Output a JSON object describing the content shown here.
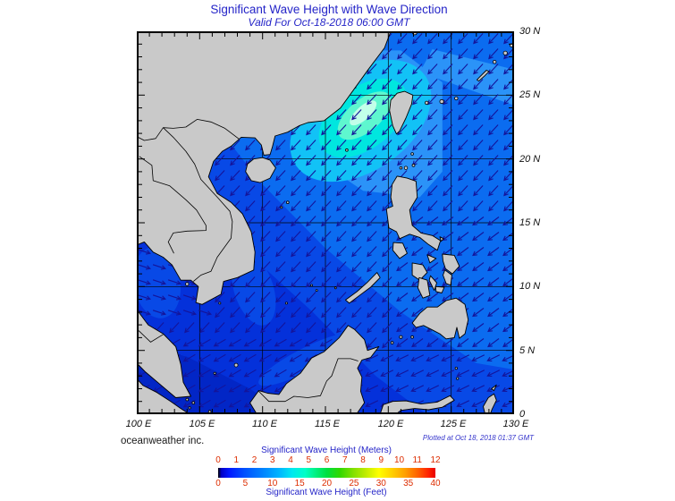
{
  "header": {
    "title": "Significant Wave Height with Wave Direction",
    "subtitle": "Valid For Oct-18-2018 06:00 GMT"
  },
  "footer": {
    "credit": "oceanweather inc.",
    "plotted": "Plotted at Oct 18, 2018 01:37 GMT"
  },
  "axes": {
    "lon_labels": [
      "100 E",
      "105 E",
      "110 E",
      "115 E",
      "120 E",
      "125 E",
      "130 E"
    ],
    "lat_labels": [
      "30 N",
      "25 N",
      "20 N",
      "15 N",
      "10 N",
      "5 N",
      "0"
    ]
  },
  "colorbar": {
    "meters_title": "Significant Wave Height (Meters)",
    "feet_title": "Significant Wave Height (Feet)",
    "meters_ticks": [
      "0",
      "1",
      "2",
      "3",
      "4",
      "5",
      "6",
      "7",
      "8",
      "9",
      "10",
      "11",
      "12"
    ],
    "feet_ticks": [
      "0",
      "5",
      "10",
      "15",
      "20",
      "25",
      "30",
      "35",
      "40"
    ],
    "tick_color": "#dd2d00",
    "title_color": "#2525c8"
  },
  "map": {
    "land_color": "#c9c9c9",
    "coast_color": "#000000",
    "grid_color": "#000000",
    "frame_color": "#000000",
    "arrow_color": "#14149a",
    "sea": {
      "base": "#0431da",
      "deep": "#0226c6",
      "band_1_5": "#0849e6",
      "band_2": "#0b6cf0",
      "band_2_5": "#2b93f8",
      "band_3": "#12c2f6",
      "band_3_5": "#00e6df",
      "band_4": "#5ef7cf",
      "band_4_5": "#c2ffe9"
    }
  },
  "chart_data": {
    "type": "heatmap",
    "title": "Significant Wave Height with Wave Direction",
    "valid_time": "Oct-18-2018 06:00 GMT",
    "plotted_time": "Oct 18, 2018 01:37 GMT",
    "region": "South China Sea / Philippine Sea",
    "lon_range_deg_e": [
      100,
      130
    ],
    "lat_range_deg_n": [
      0,
      30
    ],
    "grid_interval_deg": 5,
    "legend_meters": [
      0,
      1,
      2,
      3,
      4,
      5,
      6,
      7,
      8,
      9,
      10,
      11,
      12
    ],
    "legend_feet": [
      0,
      5,
      10,
      15,
      20,
      25,
      30,
      35,
      40
    ],
    "field_summary": "Wave heights about 1-2 m in the southern South China Sea and Gulf of Thailand, 2-3 m in the central basin and Philippine Sea, peaking near 4-5 m in the Taiwan Strait; wave direction predominantly from the northeast (arrows point southwest)."
  }
}
